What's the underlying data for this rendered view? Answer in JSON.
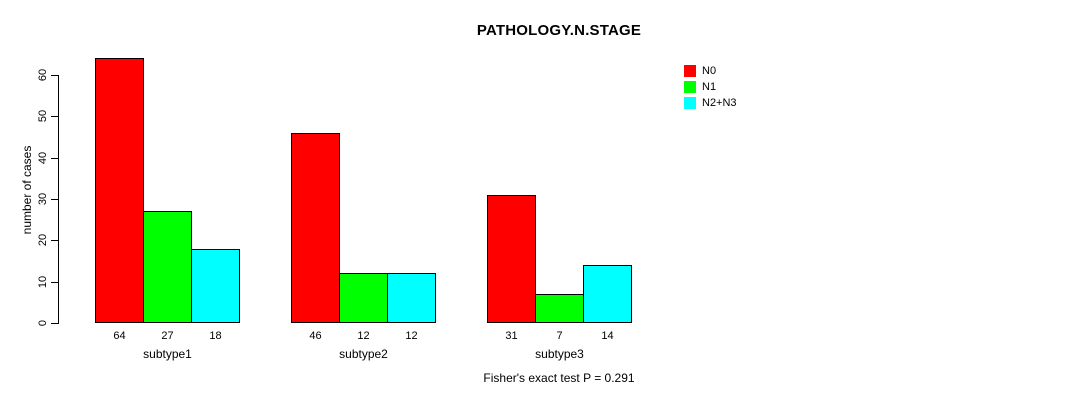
{
  "chart_data": {
    "type": "bar",
    "title": "PATHOLOGY.N.STAGE",
    "ylabel": "number of cases",
    "xlabel": "",
    "categories": [
      "subtype1",
      "subtype2",
      "subtype3"
    ],
    "series": [
      {
        "name": "N0",
        "color": "#ff0000",
        "values": [
          64,
          46,
          31
        ]
      },
      {
        "name": "N1",
        "color": "#00ff00",
        "values": [
          27,
          12,
          7
        ]
      },
      {
        "name": "N2+N3",
        "color": "#00ffff",
        "values": [
          18,
          12,
          14
        ]
      }
    ],
    "yticks": [
      0,
      10,
      20,
      30,
      40,
      50,
      60
    ],
    "ylim": [
      0,
      64
    ],
    "grid": false,
    "legend_position": "top-right",
    "bar_value_labels_shown": true,
    "annotation": "Fisher's exact test P = 0.291",
    "bar_border_color": "#000000",
    "background": "#ffffff"
  }
}
